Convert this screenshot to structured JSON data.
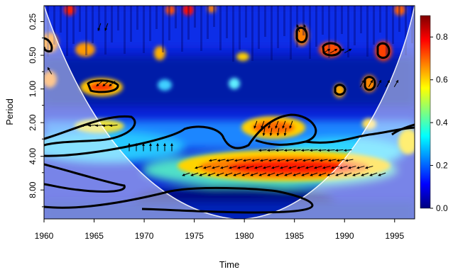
{
  "chart_data": {
    "type": "heatmap",
    "title": "",
    "xlabel": "Time",
    "ylabel": "Period",
    "xlim": [
      1960,
      1997
    ],
    "x_ticks": [
      "1960",
      "1965",
      "1970",
      "1975",
      "1980",
      "1985",
      "1990",
      "1995"
    ],
    "y_scale": "log2",
    "y_ticks": [
      "0.25",
      "0.50",
      "1.00",
      "2.00",
      "4.00",
      "8.00"
    ],
    "colorbar": {
      "range": [
        0,
        0.9
      ],
      "ticks": [
        "0.0",
        "0.2",
        "0.4",
        "0.6",
        "0.8"
      ],
      "colors": [
        "#00007F",
        "#0000FF",
        "#007FFF",
        "#00FFFF",
        "#7FFF7F",
        "#FFFF00",
        "#FF7F00",
        "#FF0000",
        "#7F0000"
      ]
    },
    "cone_of_influence": true,
    "significance_contours": true,
    "phase_arrows": true,
    "features": [
      {
        "name": "long-period band",
        "x_range": [
          1973,
          1993
        ],
        "period": 4.5,
        "power": 0.8
      },
      {
        "name": "intermediate patch",
        "x_range": [
          1980,
          1985
        ],
        "period": 2.0,
        "power": 0.7
      },
      {
        "name": "early period-2 patch",
        "x_range": [
          1963,
          1966
        ],
        "period": 2.0,
        "power": 0.6
      },
      {
        "name": "early period-1 patch",
        "x_range": [
          1964,
          1966
        ],
        "period": 0.9,
        "power": 0.7
      },
      {
        "name": "low-power trough",
        "x_range": [
          1972,
          1984
        ],
        "period": 10,
        "power": 0.05
      }
    ]
  }
}
